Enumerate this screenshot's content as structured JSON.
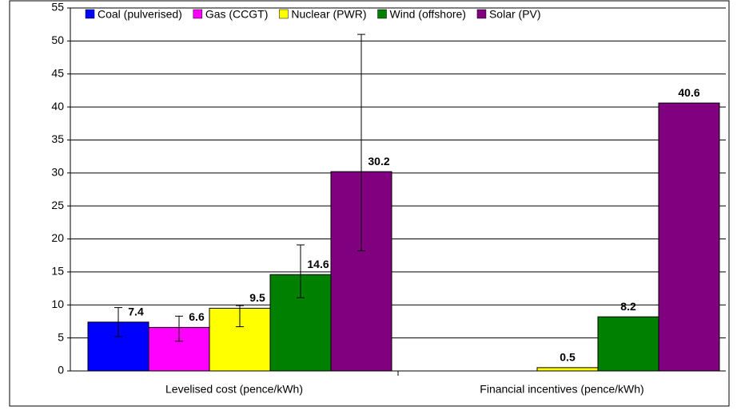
{
  "chart_data": {
    "type": "bar",
    "categories": [
      "Levelised cost (pence/kWh)",
      "Financial incentives (pence/kWh)"
    ],
    "series": [
      {
        "name": "Coal (pulverised)",
        "color": "#0000ff",
        "values": [
          7.4,
          null
        ],
        "error_lower": [
          2.2,
          null
        ],
        "error_upper": [
          2.2,
          null
        ]
      },
      {
        "name": "Gas (CCGT)",
        "color": "#ff00ff",
        "values": [
          6.6,
          null
        ],
        "error_lower": [
          2.1,
          null
        ],
        "error_upper": [
          1.7,
          null
        ]
      },
      {
        "name": "Nuclear (PWR)",
        "color": "#ffff00",
        "values": [
          9.5,
          0.5
        ],
        "error_lower": [
          2.8,
          null
        ],
        "error_upper": [
          0.4,
          null
        ]
      },
      {
        "name": "Wind (offshore)",
        "color": "#008000",
        "values": [
          14.6,
          8.2
        ],
        "error_lower": [
          3.5,
          null
        ],
        "error_upper": [
          4.5,
          null
        ]
      },
      {
        "name": "Solar (PV)",
        "color": "#800080",
        "values": [
          30.2,
          40.6
        ],
        "error_lower": [
          12.0,
          null
        ],
        "error_upper": [
          20.8,
          null
        ]
      }
    ],
    "ylim": [
      0,
      55
    ],
    "yticks": [
      0,
      5,
      10,
      15,
      20,
      25,
      30,
      35,
      40,
      45,
      50,
      55
    ],
    "grid": true,
    "legend": "top"
  }
}
